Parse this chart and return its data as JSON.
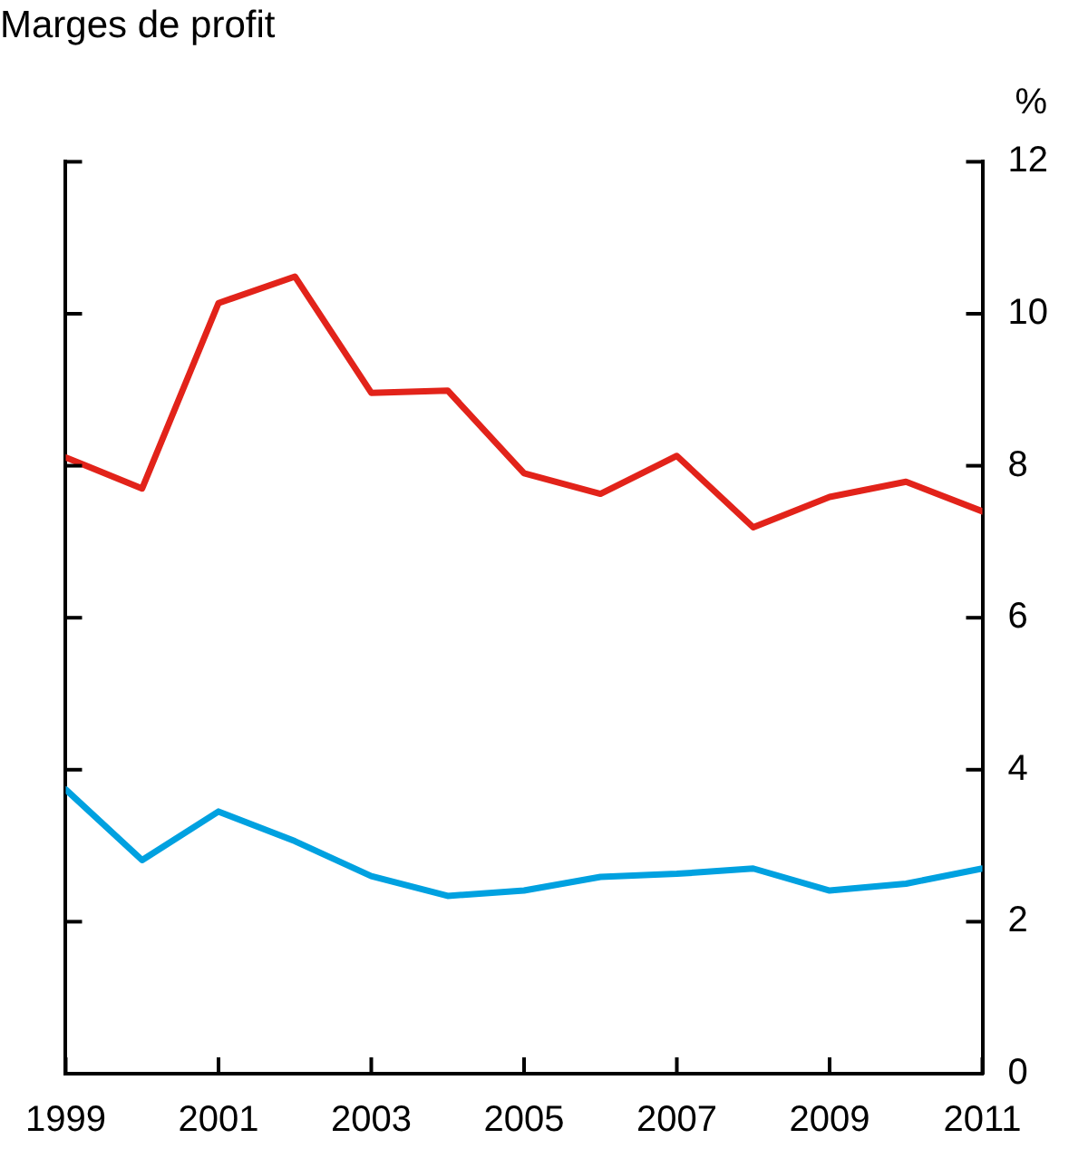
{
  "chart_data": {
    "type": "line",
    "title": "Marges de profit",
    "ylabel": "%",
    "x": [
      1999,
      2000,
      2001,
      2002,
      2003,
      2004,
      2005,
      2006,
      2007,
      2008,
      2009,
      2010,
      2011
    ],
    "series": [
      {
        "color": "#e2231a",
        "values": [
          8.11,
          7.7,
          10.14,
          10.49,
          8.96,
          8.99,
          7.9,
          7.63,
          8.13,
          7.19,
          7.59,
          7.79,
          7.4
        ]
      },
      {
        "color": "#00a1e0",
        "values": [
          3.74,
          2.81,
          3.45,
          3.06,
          2.6,
          2.34,
          2.41,
          2.59,
          2.63,
          2.7,
          2.41,
          2.5,
          2.7
        ]
      }
    ],
    "xlim": [
      1999,
      2011
    ],
    "xticks": [
      1999,
      2001,
      2003,
      2005,
      2007,
      2009,
      2011
    ],
    "ylim": [
      0,
      12
    ],
    "yticks": [
      0,
      2,
      4,
      6,
      8,
      10,
      12
    ],
    "grid": false,
    "legend": false,
    "marker": "none",
    "line_style": "solid"
  }
}
